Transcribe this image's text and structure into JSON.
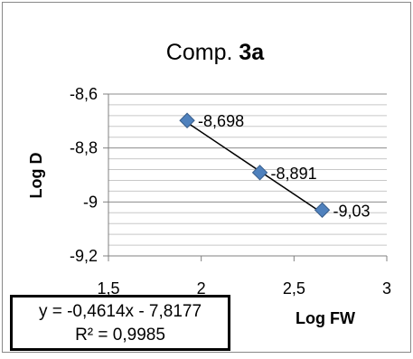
{
  "chart_data": {
    "type": "scatter",
    "title_prefix": "Comp. ",
    "title_bold": "3a",
    "xlabel": "Log FW",
    "ylabel": "Log D",
    "xlim": [
      1.5,
      3
    ],
    "ylim": [
      -9.2,
      -8.6
    ],
    "x_ticks": [
      "1,5",
      "2",
      "2,5",
      "3"
    ],
    "y_ticks": [
      "-8,6",
      "-8,8",
      "-9",
      "-9,2"
    ],
    "series": [
      {
        "points": [
          {
            "x": 1.924,
            "y": -8.698,
            "label": "-8,698"
          },
          {
            "x": 2.316,
            "y": -8.891,
            "label": "-8,891"
          },
          {
            "x": 2.652,
            "y": -9.03,
            "label": "-9,03"
          }
        ],
        "marker": "diamond",
        "color": "#4f81bd"
      }
    ],
    "trendline": {
      "slope": -0.4614,
      "intercept": -7.8177,
      "equation": "y = -0,4614x - 7,8177",
      "r_squared": "R² = 0,9985"
    },
    "grid": "horizontal minor"
  }
}
